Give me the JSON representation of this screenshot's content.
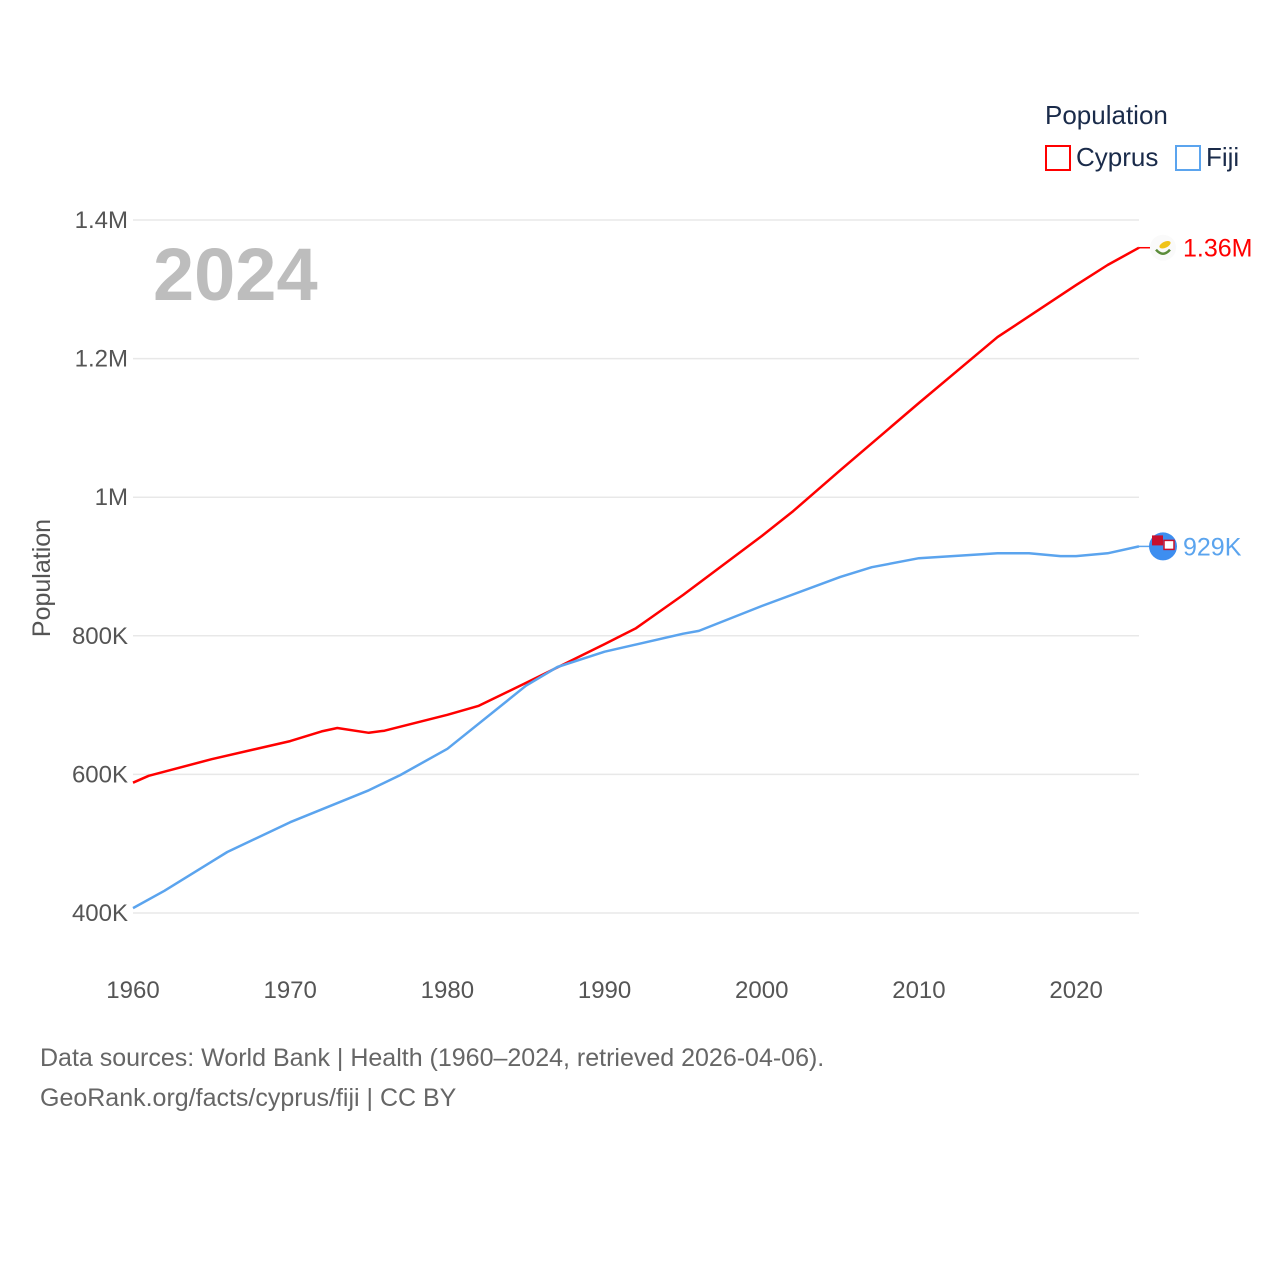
{
  "chart_data": {
    "type": "line",
    "title": "Population",
    "year_label": "2024",
    "xlabel": "",
    "ylabel": "Population",
    "xlim": [
      1960,
      2024
    ],
    "ylim": [
      400000,
      1400000
    ],
    "grid": true,
    "legend_placement": "top-right",
    "legend_title": "Population",
    "x_ticks": [
      "1960",
      "1970",
      "1980",
      "1990",
      "2000",
      "2010",
      "2020"
    ],
    "y_ticks": [
      {
        "value": 400000,
        "label": "400K"
      },
      {
        "value": 600000,
        "label": "600K"
      },
      {
        "value": 800000,
        "label": "800K"
      },
      {
        "value": 1000000,
        "label": "1M"
      },
      {
        "value": 1200000,
        "label": "1.2M"
      },
      {
        "value": 1400000,
        "label": "1.4M"
      }
    ],
    "series": [
      {
        "name": "Cyprus",
        "color": "#ff0000",
        "end_label": "1.36M",
        "icon": "cyprus-flag-icon",
        "points": [
          [
            1960,
            588000
          ],
          [
            1961,
            598000
          ],
          [
            1965,
            622000
          ],
          [
            1970,
            648000
          ],
          [
            1972,
            662000
          ],
          [
            1973,
            667000
          ],
          [
            1975,
            660000
          ],
          [
            1976,
            663000
          ],
          [
            1980,
            686000
          ],
          [
            1982,
            699000
          ],
          [
            1985,
            732000
          ],
          [
            1990,
            788000
          ],
          [
            1992,
            811000
          ],
          [
            1993,
            827000
          ],
          [
            1995,
            859000
          ],
          [
            2000,
            944000
          ],
          [
            2002,
            980000
          ],
          [
            2005,
            1039000
          ],
          [
            2010,
            1136000
          ],
          [
            2015,
            1231000
          ],
          [
            2020,
            1306000
          ],
          [
            2022,
            1335000
          ],
          [
            2024,
            1360000
          ]
        ]
      },
      {
        "name": "Fiji",
        "color": "#5ba4ee",
        "end_label": "929K",
        "icon": "fiji-flag-icon",
        "points": [
          [
            1960,
            407000
          ],
          [
            1962,
            432000
          ],
          [
            1965,
            474000
          ],
          [
            1966,
            488000
          ],
          [
            1970,
            531000
          ],
          [
            1975,
            577000
          ],
          [
            1977,
            599000
          ],
          [
            1980,
            637000
          ],
          [
            1985,
            728000
          ],
          [
            1987,
            755000
          ],
          [
            1990,
            777000
          ],
          [
            1995,
            803000
          ],
          [
            1996,
            807000
          ],
          [
            2000,
            843000
          ],
          [
            2005,
            885000
          ],
          [
            2007,
            899000
          ],
          [
            2010,
            912000
          ],
          [
            2015,
            919000
          ],
          [
            2017,
            919000
          ],
          [
            2019,
            915000
          ],
          [
            2020,
            915000
          ],
          [
            2022,
            919000
          ],
          [
            2024,
            929000
          ]
        ]
      }
    ]
  },
  "footer": {
    "line1": "Data sources: World Bank | Health (1960–2024, retrieved 2026-04-06).",
    "line2": "GeoRank.org/facts/cyprus/fiji | CC BY"
  }
}
